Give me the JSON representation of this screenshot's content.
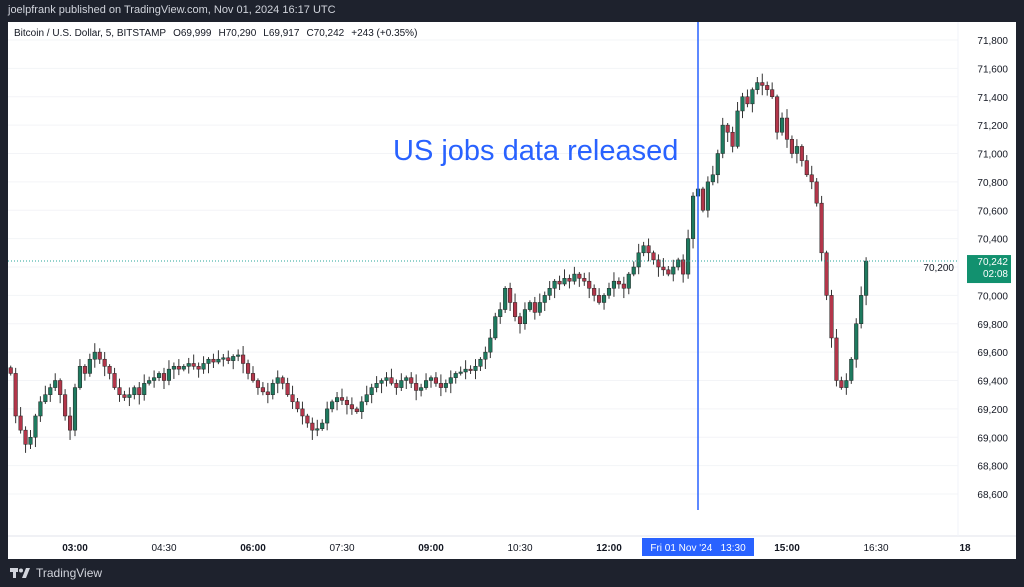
{
  "publisher_line": "joelpfrank published on TradingView.com, Nov 01, 2024 16:17 UTC",
  "legend": {
    "symbol": "Bitcoin / U.S. Dollar, 5, BITSTAMP",
    "open": "O69,999",
    "high": "H70,290",
    "low": "L69,917",
    "close": "C70,242",
    "change": "+243 (+0.35%)"
  },
  "annotation": "US jobs data released",
  "crosshair_label": "Fri 01 Nov '24   13:30",
  "last_price": {
    "price": "70,242",
    "countdown": "02:08"
  },
  "footer": {
    "brand": "TradingView"
  },
  "colors": {
    "up": "#26a69a",
    "down": "#ef5350",
    "candle_up": "#1e7a5f",
    "candle_down": "#b3364a",
    "accent": "#2962ff",
    "frame": "#1e222d"
  },
  "chart_data": {
    "type": "candlestick",
    "interval_minutes": 5,
    "first_bar_time": "01:55",
    "closes": [
      69450,
      69150,
      69050,
      68950,
      69000,
      69150,
      69250,
      69300,
      69350,
      69400,
      69300,
      69150,
      69050,
      69350,
      69500,
      69450,
      69550,
      69600,
      69550,
      69500,
      69450,
      69350,
      69300,
      69280,
      69300,
      69350,
      69300,
      69380,
      69400,
      69420,
      69450,
      69400,
      69480,
      69500,
      69480,
      69500,
      69520,
      69500,
      69480,
      69520,
      69550,
      69530,
      69550,
      69560,
      69540,
      69570,
      69580,
      69520,
      69450,
      69400,
      69350,
      69320,
      69300,
      69380,
      69420,
      69380,
      69300,
      69250,
      69200,
      69150,
      69100,
      69050,
      69060,
      69100,
      69200,
      69250,
      69280,
      69260,
      69230,
      69200,
      69180,
      69250,
      69300,
      69350,
      69380,
      69400,
      69420,
      69380,
      69350,
      69400,
      69420,
      69380,
      69330,
      69350,
      69400,
      69420,
      69380,
      69350,
      69380,
      69420,
      69450,
      69460,
      69480,
      69470,
      69500,
      69550,
      69600,
      69700,
      69850,
      69900,
      70050,
      69950,
      69850,
      69800,
      69900,
      69950,
      69880,
      69950,
      70000,
      70050,
      70100,
      70080,
      70120,
      70100,
      70150,
      70120,
      70100,
      70050,
      70000,
      69950,
      70000,
      70050,
      70100,
      70080,
      70050,
      70150,
      70200,
      70300,
      70350,
      70300,
      70250,
      70200,
      70180,
      70150,
      70200,
      70250,
      70150,
      70400,
      70700,
      70750,
      70600,
      70800,
      70850,
      71000,
      71200,
      71150,
      71050,
      71300,
      71400,
      71350,
      71450,
      71500,
      71480,
      71450,
      71400,
      71150,
      71250,
      71100,
      71000,
      71050,
      70950,
      70850,
      70800,
      70650,
      70300,
      70000,
      69700,
      69400,
      69350,
      69400,
      69550,
      69800,
      70000,
      70242
    ],
    "y_ticks": [
      68600,
      68800,
      69000,
      69200,
      69400,
      69600,
      69800,
      70000,
      70200,
      70400,
      70600,
      70800,
      71000,
      71200,
      71400,
      71600,
      71800
    ],
    "x_ticks": [
      {
        "label": "03:00",
        "bold": true,
        "min": 180
      },
      {
        "label": "04:30",
        "bold": false,
        "min": 270
      },
      {
        "label": "06:00",
        "bold": true,
        "min": 360
      },
      {
        "label": "07:30",
        "bold": false,
        "min": 450
      },
      {
        "label": "09:00",
        "bold": true,
        "min": 540
      },
      {
        "label": "10:30",
        "bold": false,
        "min": 630
      },
      {
        "label": "12:00",
        "bold": true,
        "min": 720
      },
      {
        "label": "15:00",
        "bold": true,
        "min": 900
      },
      {
        "label": "16:30",
        "bold": false,
        "min": 990
      },
      {
        "label": "18",
        "bold": true,
        "min": 1080
      }
    ],
    "event_time_min": 810,
    "last_close": 70242
  }
}
